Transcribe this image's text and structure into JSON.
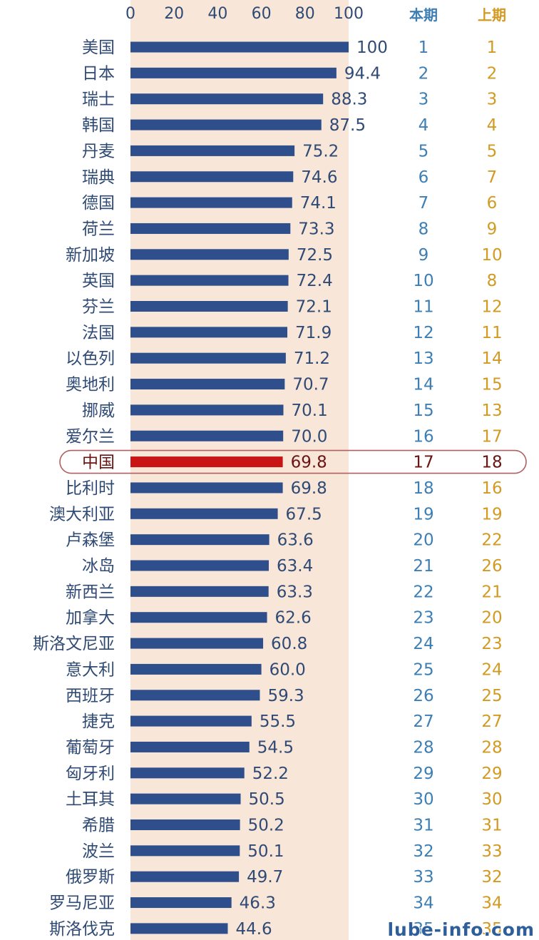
{
  "chart_data": {
    "type": "bar",
    "orientation": "horizontal",
    "xlim": [
      0,
      100
    ],
    "xticks": [
      "0",
      "20",
      "40",
      "60",
      "80",
      "100"
    ],
    "headers": {
      "current": "本期",
      "previous": "上期"
    },
    "highlight": "中国",
    "colors": {
      "bar": "#2e4f8c",
      "highlight_bar": "#c81414",
      "band": "#f8e6d9",
      "current_rank": "#3d7fb5",
      "previous_rank": "#d39a22"
    },
    "rows": [
      {
        "name": "美国",
        "value": 100,
        "label": "100",
        "current": "1",
        "previous": "1"
      },
      {
        "name": "日本",
        "value": 94.4,
        "label": "94.4",
        "current": "2",
        "previous": "2"
      },
      {
        "name": "瑞士",
        "value": 88.3,
        "label": "88.3",
        "current": "3",
        "previous": "3"
      },
      {
        "name": "韩国",
        "value": 87.5,
        "label": "87.5",
        "current": "4",
        "previous": "4"
      },
      {
        "name": "丹麦",
        "value": 75.2,
        "label": "75.2",
        "current": "5",
        "previous": "5"
      },
      {
        "name": "瑞典",
        "value": 74.6,
        "label": "74.6",
        "current": "6",
        "previous": "7"
      },
      {
        "name": "德国",
        "value": 74.1,
        "label": "74.1",
        "current": "7",
        "previous": "6"
      },
      {
        "name": "荷兰",
        "value": 73.3,
        "label": "73.3",
        "current": "8",
        "previous": "9"
      },
      {
        "name": "新加坡",
        "value": 72.5,
        "label": "72.5",
        "current": "9",
        "previous": "10"
      },
      {
        "name": "英国",
        "value": 72.4,
        "label": "72.4",
        "current": "10",
        "previous": "8"
      },
      {
        "name": "芬兰",
        "value": 72.1,
        "label": "72.1",
        "current": "11",
        "previous": "12"
      },
      {
        "name": "法国",
        "value": 71.9,
        "label": "71.9",
        "current": "12",
        "previous": "11"
      },
      {
        "name": "以色列",
        "value": 71.2,
        "label": "71.2",
        "current": "13",
        "previous": "14"
      },
      {
        "name": "奥地利",
        "value": 70.7,
        "label": "70.7",
        "current": "14",
        "previous": "15"
      },
      {
        "name": "挪威",
        "value": 70.1,
        "label": "70.1",
        "current": "15",
        "previous": "13"
      },
      {
        "name": "爱尔兰",
        "value": 70.0,
        "label": "70.0",
        "current": "16",
        "previous": "17"
      },
      {
        "name": "中国",
        "value": 69.8,
        "label": "69.8",
        "current": "17",
        "previous": "18"
      },
      {
        "name": "比利时",
        "value": 69.8,
        "label": "69.8",
        "current": "18",
        "previous": "16"
      },
      {
        "name": "澳大利亚",
        "value": 67.5,
        "label": "67.5",
        "current": "19",
        "previous": "19"
      },
      {
        "name": "卢森堡",
        "value": 63.6,
        "label": "63.6",
        "current": "20",
        "previous": "22"
      },
      {
        "name": "冰岛",
        "value": 63.4,
        "label": "63.4",
        "current": "21",
        "previous": "26"
      },
      {
        "name": "新西兰",
        "value": 63.3,
        "label": "63.3",
        "current": "22",
        "previous": "21"
      },
      {
        "name": "加拿大",
        "value": 62.6,
        "label": "62.6",
        "current": "23",
        "previous": "20"
      },
      {
        "name": "斯洛文尼亚",
        "value": 60.8,
        "label": "60.8",
        "current": "24",
        "previous": "23"
      },
      {
        "name": "意大利",
        "value": 60.0,
        "label": "60.0",
        "current": "25",
        "previous": "24"
      },
      {
        "name": "西班牙",
        "value": 59.3,
        "label": "59.3",
        "current": "26",
        "previous": "25"
      },
      {
        "name": "捷克",
        "value": 55.5,
        "label": "55.5",
        "current": "27",
        "previous": "27"
      },
      {
        "name": "葡萄牙",
        "value": 54.5,
        "label": "54.5",
        "current": "28",
        "previous": "28"
      },
      {
        "name": "匈牙利",
        "value": 52.2,
        "label": "52.2",
        "current": "29",
        "previous": "29"
      },
      {
        "name": "土耳其",
        "value": 50.5,
        "label": "50.5",
        "current": "30",
        "previous": "30"
      },
      {
        "name": "希腊",
        "value": 50.2,
        "label": "50.2",
        "current": "31",
        "previous": "31"
      },
      {
        "name": "波兰",
        "value": 50.1,
        "label": "50.1",
        "current": "32",
        "previous": "33"
      },
      {
        "name": "俄罗斯",
        "value": 49.7,
        "label": "49.7",
        "current": "33",
        "previous": "32"
      },
      {
        "name": "罗马尼亚",
        "value": 46.3,
        "label": "46.3",
        "current": "34",
        "previous": "34"
      },
      {
        "name": "斯洛伐克",
        "value": 44.6,
        "label": "44.6",
        "current": "35",
        "previous": "35"
      }
    ]
  },
  "watermark": "lube-info.com"
}
